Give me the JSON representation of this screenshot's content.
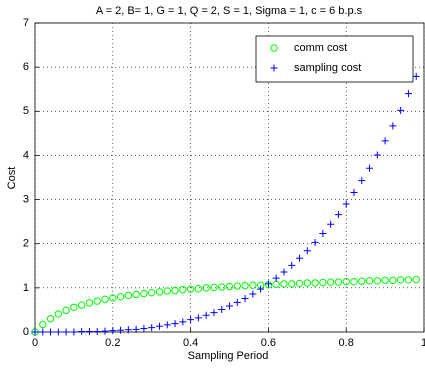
{
  "chart_data": {
    "type": "scatter",
    "title": "A = 2, B= 1, G = 1, Q = 2, S = 1, Sigma = 1, c = 6 b.p.s",
    "x_label": "Sampling Period",
    "y_label": "Cost",
    "xlim": [
      0,
      1
    ],
    "ylim": [
      0,
      7
    ],
    "xticks": [
      0,
      0.2,
      0.4,
      0.6,
      0.8,
      1
    ],
    "yticks": [
      0,
      1,
      2,
      3,
      4,
      5,
      6,
      7
    ],
    "grid": true,
    "legend_position": "upper right",
    "x": [
      0,
      0.02,
      0.04,
      0.06,
      0.08,
      0.1,
      0.12,
      0.14,
      0.16,
      0.18,
      0.2,
      0.22,
      0.24,
      0.26,
      0.28,
      0.3,
      0.32,
      0.34,
      0.36,
      0.38,
      0.4,
      0.42,
      0.44,
      0.46,
      0.48,
      0.5,
      0.52,
      0.54,
      0.56,
      0.58,
      0.6,
      0.62,
      0.64,
      0.66,
      0.68,
      0.7,
      0.72,
      0.74,
      0.76,
      0.78,
      0.8,
      0.82,
      0.84,
      0.86,
      0.88,
      0.9,
      0.92,
      0.94,
      0.96,
      0.98
    ],
    "series": [
      {
        "name": "comm cost",
        "color": "#00ff00",
        "marker": "circle",
        "values": [
          0,
          0.17,
          0.3,
          0.41,
          0.49,
          0.56,
          0.61,
          0.66,
          0.7,
          0.74,
          0.77,
          0.8,
          0.83,
          0.85,
          0.87,
          0.89,
          0.91,
          0.93,
          0.94,
          0.96,
          0.97,
          0.98,
          1.0,
          1.01,
          1.02,
          1.03,
          1.04,
          1.05,
          1.06,
          1.06,
          1.07,
          1.08,
          1.09,
          1.09,
          1.1,
          1.11,
          1.11,
          1.12,
          1.13,
          1.13,
          1.14,
          1.14,
          1.15,
          1.16,
          1.16,
          1.17,
          1.17,
          1.18,
          1.18,
          1.19
        ]
      },
      {
        "name": "sampling cost",
        "color": "#0000ff",
        "marker": "plus",
        "values": [
          0,
          0,
          0,
          0,
          0,
          0,
          0.01,
          0.01,
          0.01,
          0.02,
          0.03,
          0.04,
          0.05,
          0.06,
          0.08,
          0.1,
          0.13,
          0.16,
          0.19,
          0.23,
          0.28,
          0.32,
          0.38,
          0.44,
          0.51,
          0.59,
          0.67,
          0.76,
          0.86,
          0.97,
          1.09,
          1.22,
          1.36,
          1.51,
          1.67,
          1.84,
          2.03,
          2.23,
          2.44,
          2.66,
          2.9,
          3.16,
          3.43,
          3.71,
          4.01,
          4.33,
          4.67,
          5.02,
          5.4,
          5.79
        ]
      }
    ]
  }
}
